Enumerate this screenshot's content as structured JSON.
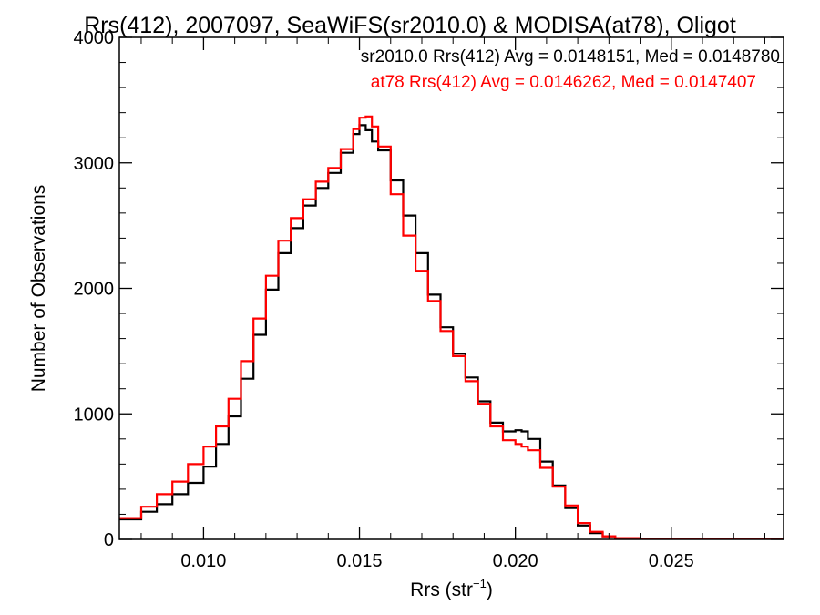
{
  "chart_data": {
    "type": "line",
    "title": "Rrs(412), 2007097, SeaWiFS(sr2010.0) & MODISA(at78), Oligot",
    "xlabel_main": "Rrs (str",
    "xlabel_sup": "−1",
    "xlabel_close": ")",
    "ylabel": "Number of Observations",
    "xlim": [
      0.0073,
      0.0286
    ],
    "ylim": [
      0,
      4000
    ],
    "xticks": [
      0.01,
      0.015,
      0.02,
      0.025
    ],
    "xtick_labels": [
      "0.010",
      "0.015",
      "0.020",
      "0.025"
    ],
    "yticks": [
      0,
      1000,
      2000,
      3000,
      4000
    ],
    "ytick_labels": [
      "0",
      "1000",
      "2000",
      "3000",
      "4000"
    ],
    "grid": false,
    "series": [
      {
        "name": "sr2010.0",
        "color": "#000000",
        "annotation": "sr2010.0 Rrs(412) Avg = 0.0148151, Med = 0.0148780",
        "x": [
          0.0073,
          0.008,
          0.0085,
          0.009,
          0.0095,
          0.01,
          0.0104,
          0.0108,
          0.0112,
          0.0116,
          0.012,
          0.0124,
          0.0128,
          0.0132,
          0.0136,
          0.014,
          0.0144,
          0.0148,
          0.015,
          0.0152,
          0.0154,
          0.0156,
          0.016,
          0.0164,
          0.0168,
          0.0172,
          0.0176,
          0.018,
          0.0184,
          0.0188,
          0.0192,
          0.0196,
          0.02,
          0.0202,
          0.0204,
          0.0208,
          0.0212,
          0.0216,
          0.022,
          0.0224,
          0.0228,
          0.0232,
          0.024,
          0.025,
          0.026,
          0.027,
          0.0286
        ],
        "y": [
          160,
          220,
          280,
          360,
          450,
          580,
          760,
          980,
          1280,
          1630,
          1990,
          2280,
          2480,
          2660,
          2800,
          2920,
          3080,
          3230,
          3300,
          3260,
          3170,
          3100,
          2860,
          2580,
          2280,
          1950,
          1690,
          1480,
          1290,
          1100,
          930,
          860,
          870,
          860,
          800,
          620,
          430,
          250,
          110,
          50,
          25,
          10,
          4,
          1,
          0,
          0,
          0
        ]
      },
      {
        "name": "at78",
        "color": "#ff0000",
        "annotation": "at78 Rrs(412) Avg = 0.0146262, Med = 0.0147407",
        "x": [
          0.0073,
          0.008,
          0.0085,
          0.009,
          0.0095,
          0.01,
          0.0104,
          0.0108,
          0.0112,
          0.0116,
          0.012,
          0.0124,
          0.0128,
          0.0132,
          0.0136,
          0.014,
          0.0144,
          0.0148,
          0.015,
          0.0152,
          0.0154,
          0.0156,
          0.016,
          0.0164,
          0.0168,
          0.0172,
          0.0176,
          0.018,
          0.0184,
          0.0188,
          0.0192,
          0.0196,
          0.02,
          0.0202,
          0.0204,
          0.0208,
          0.0212,
          0.0216,
          0.022,
          0.0224,
          0.0228,
          0.0232,
          0.024,
          0.025,
          0.026,
          0.027,
          0.0286
        ],
        "y": [
          170,
          260,
          360,
          460,
          600,
          740,
          900,
          1120,
          1420,
          1760,
          2100,
          2380,
          2560,
          2710,
          2850,
          2960,
          3110,
          3270,
          3360,
          3370,
          3290,
          3130,
          2750,
          2420,
          2140,
          1900,
          1660,
          1460,
          1260,
          1080,
          900,
          790,
          760,
          740,
          710,
          570,
          420,
          270,
          130,
          60,
          25,
          10,
          4,
          1,
          0,
          0,
          0
        ]
      }
    ]
  }
}
